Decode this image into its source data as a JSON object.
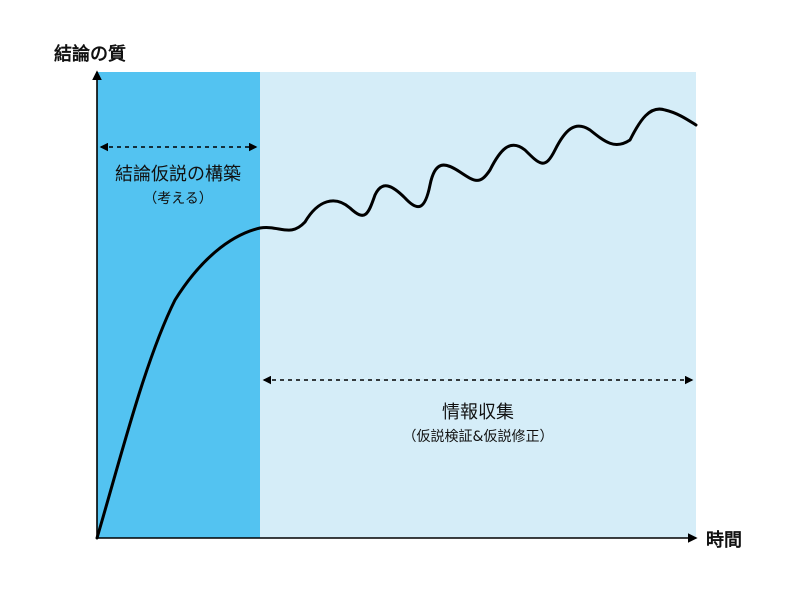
{
  "axes": {
    "y_label": "結論の質",
    "x_label": "時間"
  },
  "phases": [
    {
      "title": "結論仮説の構築",
      "subtitle": "（考える）",
      "color": "#53c3f1"
    },
    {
      "title": "情報収集",
      "subtitle": "（仮説検証&仮説修正）",
      "color": "#d5edf8"
    }
  ],
  "colors": {
    "curve": "#000000",
    "axis": "#000000"
  }
}
